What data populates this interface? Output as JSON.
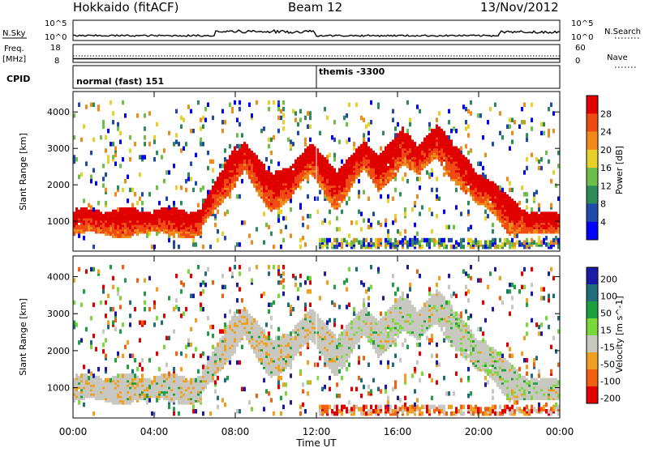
{
  "header": {
    "station": "Hokkaido (fitACF)",
    "beam": "Beam 12",
    "date": "13/Nov/2012"
  },
  "strip": {
    "nsky_label": "N.Sky",
    "nsky_ticks": [
      "10^5",
      "10^0"
    ],
    "nsearch_label": "N.Search",
    "nsearch_ticks": [
      "10^5",
      "10^0"
    ],
    "freq_label": "Freq.",
    "freq_unit": "[MHz]",
    "freq_ticks": [
      "18",
      "8"
    ],
    "nave_label": "Nave",
    "nave_ticks": [
      "60",
      "0"
    ],
    "cpid_label": "CPID",
    "cpid_modes": [
      "normal (fast) 151",
      "themis -3300"
    ]
  },
  "chart_data": [
    {
      "type": "heatmap",
      "panel": "power",
      "ylabel": "Slant Range [km]",
      "y_ticks": [
        "1000",
        "2000",
        "3000",
        "4000"
      ],
      "ylim": [
        180,
        4560
      ],
      "colorbar_label": "Power [dB]",
      "colorbar_ticks": [
        "4",
        "8",
        "12",
        "16",
        "20",
        "24",
        "28"
      ],
      "colors": [
        "#0000ff",
        "#1f4aa8",
        "#2e8b57",
        "#6dbf4a",
        "#e8d02a",
        "#f08a1a",
        "#ee4a12",
        "#e00000"
      ],
      "colorbar_range": [
        0,
        32
      ]
    },
    {
      "type": "heatmap",
      "panel": "velocity",
      "ylabel": "Slant Range [km]",
      "y_ticks": [
        "1000",
        "2000",
        "3000",
        "4000"
      ],
      "ylim": [
        180,
        4560
      ],
      "colorbar_label": "Velocity [m s^-1]",
      "colorbar_ticks": [
        "200",
        "100",
        "50",
        "15",
        "-15",
        "-50",
        "-100",
        "-200"
      ],
      "colors": [
        "#1a1aa8",
        "#1f6e7a",
        "#1fa040",
        "#7ad83a",
        "#c8c8c0",
        "#f0a020",
        "#f06010",
        "#e00000"
      ],
      "ground_scatter_color": "#c8c8c0"
    }
  ],
  "time_axis": {
    "xlabel": "Time UT",
    "ticks": [
      "00:00",
      "04:00",
      "08:00",
      "12:00",
      "16:00",
      "20:00",
      "00:00"
    ],
    "xlim_hours": [
      0,
      24
    ]
  }
}
